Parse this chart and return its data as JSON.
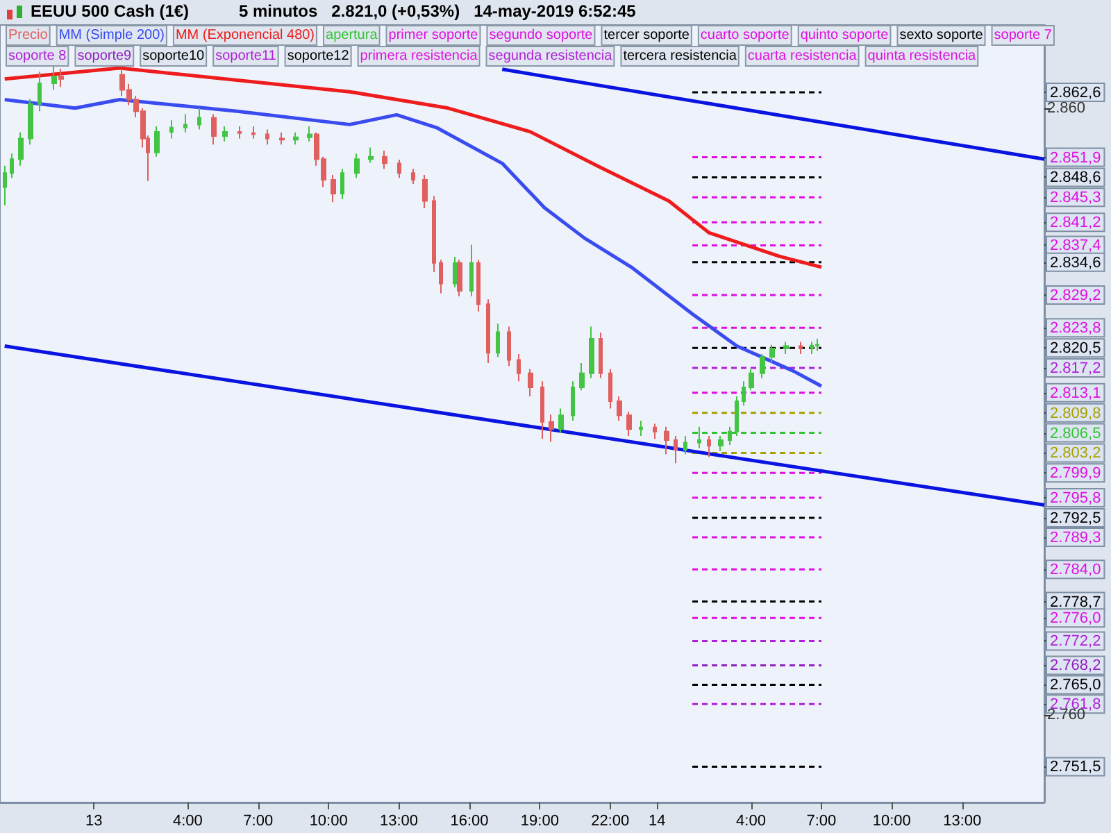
{
  "chart_data": {
    "type": "candlestick",
    "title": "EEUU 500 Cash (1€)",
    "subtitle": "5 minutos   2.821,0 (+0,53%)   14-may-2019 6:52:45",
    "legend": "top left",
    "grid": false,
    "line_style": "dashed",
    "xlim": [
      "2019-05-12T20:00",
      "2019-05-14T16:30"
    ],
    "xticks": [
      {
        "value": "2019-05-13T00:00",
        "label": "13"
      },
      {
        "value": "2019-05-13T04:00",
        "label": "4:00"
      },
      {
        "value": "2019-05-13T07:00",
        "label": "7:00"
      },
      {
        "value": "2019-05-13T10:00",
        "label": "10:00"
      },
      {
        "value": "2019-05-13T13:00",
        "label": "13:00"
      },
      {
        "value": "2019-05-13T16:00",
        "label": "16:00"
      },
      {
        "value": "2019-05-13T19:00",
        "label": "19:00"
      },
      {
        "value": "2019-05-13T22:00",
        "label": "22:00"
      },
      {
        "value": "2019-05-14T00:00",
        "label": "14"
      },
      {
        "value": "2019-05-14T04:00",
        "label": "4:00"
      },
      {
        "value": "2019-05-14T07:00",
        "label": "7:00"
      },
      {
        "value": "2019-05-14T10:00",
        "label": "10:00"
      },
      {
        "value": "2019-05-14T13:00",
        "label": "13:00"
      }
    ],
    "ylim": [
      2745.6,
      2873.7
    ],
    "yticks": [
      {
        "value": 2751.5,
        "label": "2.751,5"
      },
      {
        "value": 2862.6,
        "label": "2.862,6"
      },
      {
        "value": 2860,
        "label": "2.860"
      },
      {
        "value": 2851.9,
        "label": "2.851,9"
      },
      {
        "value": 2848.6,
        "label": "2.848,6"
      },
      {
        "value": 2845.3,
        "label": "2.845,3"
      },
      {
        "value": 2841.2,
        "label": "2.841,2"
      },
      {
        "value": 2837.4,
        "label": "2.837,4"
      },
      {
        "value": 2834.6,
        "label": "2.834,6"
      },
      {
        "value": 2829.2,
        "label": "2.829,2"
      },
      {
        "value": 2820.5,
        "label": "2.820,5"
      },
      {
        "value": 2817.2,
        "label": "2.817,2"
      },
      {
        "value": 2813.1,
        "label": "2.813,1"
      },
      {
        "value": 2809.8,
        "label": "2.809,8"
      },
      {
        "value": 2806.5,
        "label": "2.806,5"
      },
      {
        "value": 2803.2,
        "label": "2.803,2"
      },
      {
        "value": 2799.9,
        "label": "2.799,9"
      },
      {
        "value": 2795.8,
        "label": "2.795,8"
      },
      {
        "value": 2792.5,
        "label": "2.792,5"
      },
      {
        "value": 2789.3,
        "label": "2.789,3"
      },
      {
        "value": 2784.0,
        "label": "2.784,0"
      },
      {
        "value": 2778.7,
        "label": "2.778,7"
      },
      {
        "value": 2776.0,
        "label": "2.776,0"
      },
      {
        "value": 2772.2,
        "label": "2.772,2"
      },
      {
        "value": 2768.2,
        "label": "2.768,2"
      },
      {
        "value": 2765.0,
        "label": "2.765,0"
      },
      {
        "value": 2761.8,
        "label": "2.761,8"
      },
      {
        "value": 2760,
        "label": "2.760"
      },
      {
        "value": 2823.8,
        "label": "2.823,8"
      }
    ],
    "series": [
      {
        "name": "Precio",
        "color": "#e06060",
        "colors": [
          "#44c444",
          "#44c444",
          "#44c444",
          "#44c444",
          "#44c444",
          "#44c444",
          "#e06060",
          "#e06060",
          "#e06060",
          "#e06060",
          "#e06060",
          "#e06060",
          "#44c444",
          "#44c444",
          "#44c444",
          "#44c444",
          "#e06060",
          "#44c444",
          "#e06060",
          "#e06060",
          "#e06060",
          "#e06060",
          "#44c444",
          "#44c444",
          "#e06060",
          "#e06060",
          "#e06060",
          "#44c444",
          "#44c444",
          "#44c444",
          "#e06060",
          "#e06060",
          "#e06060",
          "#e06060",
          "#e06060",
          "#e06060",
          "#44c444",
          "#e06060",
          "#44c444",
          "#e06060",
          "#e06060",
          "#44c444",
          "#e06060",
          "#e06060",
          "#e06060",
          "#e06060",
          "#e06060",
          "#44c444",
          "#44c444",
          "#44c444",
          "#44c444",
          "#e06060",
          "#e06060",
          "#e06060",
          "#e06060",
          "#44c444",
          "#e06060",
          "#e06060",
          "#e06060",
          "#44c444",
          "#44c444",
          "#e06060",
          "#44c444",
          "#44c444",
          "#44c444",
          "#44c444",
          "#44c444",
          "#44c444",
          "#44c444",
          "#44c444",
          "#e06060",
          "#44c444",
          "#44c444"
        ],
        "x": [
          "2019-05-12T20:12",
          "2019-05-12T20:30",
          "2019-05-12T20:54",
          "2019-05-12T21:18",
          "2019-05-12T21:42",
          "2019-05-12T22:18",
          "2019-05-12T22:36",
          "2019-05-13T01:12",
          "2019-05-13T01:30",
          "2019-05-13T01:48",
          "2019-05-13T02:06",
          "2019-05-13T02:18",
          "2019-05-13T02:42",
          "2019-05-13T03:18",
          "2019-05-13T03:54",
          "2019-05-13T04:30",
          "2019-05-13T05:06",
          "2019-05-13T05:36",
          "2019-05-13T06:12",
          "2019-05-13T06:48",
          "2019-05-13T07:24",
          "2019-05-13T08:00",
          "2019-05-13T08:36",
          "2019-05-13T09:12",
          "2019-05-13T09:30",
          "2019-05-13T09:48",
          "2019-05-13T10:12",
          "2019-05-13T10:36",
          "2019-05-13T11:12",
          "2019-05-13T11:48",
          "2019-05-13T12:24",
          "2019-05-13T13:00",
          "2019-05-13T13:36",
          "2019-05-13T14:06",
          "2019-05-13T14:30",
          "2019-05-13T14:48",
          "2019-05-13T15:24",
          "2019-05-13T15:36",
          "2019-05-13T16:06",
          "2019-05-13T16:24",
          "2019-05-13T16:48",
          "2019-05-13T17:12",
          "2019-05-13T17:42",
          "2019-05-13T18:06",
          "2019-05-13T18:36",
          "2019-05-13T19:06",
          "2019-05-13T19:30",
          "2019-05-13T19:54",
          "2019-05-13T20:24",
          "2019-05-13T20:48",
          "2019-05-13T21:12",
          "2019-05-13T21:36",
          "2019-05-13T22:00",
          "2019-05-13T22:24",
          "2019-05-13T22:48",
          "2019-05-13T23:18",
          "2019-05-13T23:54",
          "2019-05-14T00:24",
          "2019-05-14T00:48",
          "2019-05-14T01:12",
          "2019-05-14T01:48",
          "2019-05-14T02:12",
          "2019-05-14T02:42",
          "2019-05-14T03:06",
          "2019-05-14T03:24",
          "2019-05-14T03:42",
          "2019-05-14T04:00",
          "2019-05-14T04:30",
          "2019-05-14T04:54",
          "2019-05-14T05:30",
          "2019-05-14T06:06",
          "2019-05-14T06:36",
          "2019-05-14T06:50"
        ],
        "ohlc": [
          [
            2847.0,
            2850.5,
            2844.0,
            2849.3
          ],
          [
            2849.3,
            2852.5,
            2848.5,
            2851.6
          ],
          [
            2851.6,
            2856.0,
            2850.5,
            2855.0
          ],
          [
            2855.0,
            2861.5,
            2854.0,
            2860.7
          ],
          [
            2860.7,
            2866.0,
            2859.5,
            2864.1
          ],
          [
            2864.1,
            2867.0,
            2863.0,
            2865.2
          ],
          [
            2865.2,
            2866.5,
            2863.5,
            2864.8
          ],
          [
            2865.5,
            2866.5,
            2862.0,
            2863.0
          ],
          [
            2863.0,
            2864.0,
            2860.5,
            2861.4
          ],
          [
            2861.4,
            2862.0,
            2858.5,
            2859.5
          ],
          [
            2859.5,
            2860.0,
            2853.5,
            2855.0
          ],
          [
            2855.0,
            2855.5,
            2848.0,
            2852.7
          ],
          [
            2852.7,
            2857.0,
            2852.0,
            2856.1
          ],
          [
            2856.1,
            2858.0,
            2855.0,
            2856.8
          ],
          [
            2856.8,
            2859.0,
            2856.0,
            2857.3
          ],
          [
            2857.3,
            2860.0,
            2856.5,
            2858.4
          ],
          [
            2858.4,
            2859.0,
            2854.0,
            2855.4
          ],
          [
            2855.4,
            2857.0,
            2854.5,
            2856.1
          ],
          [
            2856.1,
            2857.0,
            2855.0,
            2855.9
          ],
          [
            2855.9,
            2857.0,
            2855.0,
            2855.7
          ],
          [
            2855.7,
            2856.5,
            2854.0,
            2855.0
          ],
          [
            2855.0,
            2856.0,
            2854.0,
            2854.8
          ],
          [
            2854.8,
            2856.0,
            2854.0,
            2855.2
          ],
          [
            2855.2,
            2857.0,
            2854.5,
            2855.7
          ],
          [
            2855.7,
            2856.0,
            2850.5,
            2851.6
          ],
          [
            2851.6,
            2852.0,
            2847.0,
            2848.2
          ],
          [
            2848.2,
            2849.0,
            2844.5,
            2845.9
          ],
          [
            2845.9,
            2850.0,
            2845.0,
            2849.3
          ],
          [
            2849.3,
            2852.5,
            2848.5,
            2851.6
          ],
          [
            2851.6,
            2853.5,
            2851.0,
            2852.0
          ],
          [
            2852.0,
            2853.0,
            2850.0,
            2850.9
          ],
          [
            2850.9,
            2851.5,
            2848.5,
            2849.3
          ],
          [
            2849.3,
            2850.0,
            2847.5,
            2848.2
          ],
          [
            2848.2,
            2849.0,
            2843.5,
            2844.7
          ],
          [
            2844.7,
            2845.5,
            2833.0,
            2834.5
          ],
          [
            2834.5,
            2835.0,
            2829.5,
            2831.1
          ],
          [
            2831.1,
            2835.5,
            2830.5,
            2834.5
          ],
          [
            2834.5,
            2835.0,
            2829.0,
            2829.9
          ],
          [
            2829.9,
            2837.5,
            2829.0,
            2834.5
          ],
          [
            2834.5,
            2835.0,
            2826.5,
            2827.7
          ],
          [
            2827.7,
            2828.5,
            2818.0,
            2819.7
          ],
          [
            2819.7,
            2824.5,
            2819.0,
            2823.1
          ],
          [
            2823.1,
            2824.0,
            2817.5,
            2818.5
          ],
          [
            2818.5,
            2819.5,
            2815.0,
            2816.3
          ],
          [
            2816.3,
            2817.0,
            2812.5,
            2814.0
          ],
          [
            2814.0,
            2815.0,
            2805.5,
            2808.3
          ],
          [
            2808.3,
            2809.5,
            2805.0,
            2807.1
          ],
          [
            2807.1,
            2810.5,
            2806.5,
            2809.4
          ],
          [
            2809.4,
            2815.0,
            2808.5,
            2814.0
          ],
          [
            2814.0,
            2818.0,
            2813.5,
            2816.3
          ],
          [
            2816.3,
            2824.0,
            2815.5,
            2822.0
          ],
          [
            2822.0,
            2823.0,
            2815.5,
            2816.3
          ],
          [
            2816.3,
            2817.0,
            2810.5,
            2811.7
          ],
          [
            2811.7,
            2812.5,
            2808.5,
            2809.4
          ],
          [
            2809.4,
            2810.0,
            2806.0,
            2807.1
          ],
          [
            2807.1,
            2808.5,
            2806.0,
            2807.4
          ],
          [
            2807.4,
            2808.0,
            2805.5,
            2806.7
          ],
          [
            2806.7,
            2807.5,
            2803.0,
            2805.3
          ],
          [
            2805.3,
            2806.0,
            2801.5,
            2803.7
          ],
          [
            2803.7,
            2806.0,
            2803.0,
            2804.9
          ],
          [
            2804.9,
            2807.5,
            2804.0,
            2805.3
          ],
          [
            2805.3,
            2806.0,
            2802.5,
            2804.4
          ],
          [
            2804.4,
            2806.0,
            2803.5,
            2805.3
          ],
          [
            2805.3,
            2807.5,
            2804.5,
            2806.7
          ],
          [
            2806.7,
            2812.5,
            2806.0,
            2811.7
          ],
          [
            2811.7,
            2815.0,
            2811.0,
            2814.0
          ],
          [
            2814.0,
            2817.0,
            2813.5,
            2816.3
          ],
          [
            2816.3,
            2819.5,
            2815.5,
            2819.0
          ],
          [
            2819.0,
            2821.0,
            2818.0,
            2820.4
          ],
          [
            2820.4,
            2821.5,
            2819.5,
            2820.8
          ],
          [
            2820.8,
            2821.5,
            2819.5,
            2820.5
          ],
          [
            2820.5,
            2821.5,
            2819.5,
            2820.9
          ],
          [
            2820.9,
            2822.0,
            2820.0,
            2821.0
          ]
        ]
      },
      {
        "type": "line",
        "name": "MM (Simple 200)",
        "color": "#3a4cf0",
        "line_style": "solid",
        "x": [
          "2019-05-12T20:12",
          "2019-05-12T23:12",
          "2019-05-13T01:06",
          "2019-05-13T06:06",
          "2019-05-13T10:54",
          "2019-05-13T12:54",
          "2019-05-13T14:36",
          "2019-05-13T17:24",
          "2019-05-13T19:12",
          "2019-05-13T20:54",
          "2019-05-13T22:54",
          "2019-05-14T01:30",
          "2019-05-14T03:24",
          "2019-05-14T05:48",
          "2019-05-14T07:00"
        ],
        "values": [
          2861.4,
          2860.0,
          2861.4,
          2859.5,
          2857.3,
          2858.9,
          2856.8,
          2850.9,
          2843.6,
          2838.6,
          2833.8,
          2826.1,
          2820.8,
          2816.7,
          2814.2
        ]
      },
      {
        "type": "line",
        "name": "MM (Exponencial 480)",
        "color": "#ee1c1c",
        "line_style": "solid",
        "x": [
          "2019-05-12T20:12",
          "2019-05-13T01:06",
          "2019-05-13T05:06",
          "2019-05-13T10:54",
          "2019-05-13T15:06",
          "2019-05-13T18:36",
          "2019-05-13T21:30",
          "2019-05-14T00:30",
          "2019-05-14T02:12",
          "2019-05-14T05:12",
          "2019-05-14T07:00"
        ],
        "values": [
          2864.8,
          2866.6,
          2865.0,
          2862.7,
          2860.0,
          2856.1,
          2850.4,
          2844.7,
          2839.5,
          2835.6,
          2833.8
        ]
      },
      {
        "type": "line",
        "name": "apertura",
        "color": "#33c433",
        "x": [
          "2019-05-14T01:30",
          "2019-05-14T07:00"
        ],
        "values": [
          2806.5,
          2806.5
        ]
      },
      {
        "type": "line",
        "name": "primer soporte",
        "color": "#e010e0",
        "x": [
          "2019-05-14T01:30",
          "2019-05-14T07:00"
        ],
        "values": [
          2799.9,
          2799.9
        ]
      },
      {
        "type": "line",
        "name": "segundo soporte",
        "color": "#e010e0",
        "x": [
          "2019-05-14T01:30",
          "2019-05-14T07:00"
        ],
        "values": [
          2795.8,
          2795.8
        ]
      },
      {
        "type": "line",
        "name": "tercer soporte",
        "color": "#000000",
        "x": [
          "2019-05-14T01:30",
          "2019-05-14T07:00"
        ],
        "values": [
          2792.5,
          2792.5
        ]
      },
      {
        "type": "line",
        "name": "cuarto soporte",
        "color": "#e010e0",
        "x": [
          "2019-05-14T01:30",
          "2019-05-14T07:00"
        ],
        "values": [
          2789.3,
          2789.3
        ]
      },
      {
        "type": "line",
        "name": "quinto soporte",
        "color": "#e010e0",
        "x": [
          "2019-05-14T01:30",
          "2019-05-14T07:00"
        ],
        "values": [
          2784.0,
          2784.0
        ]
      },
      {
        "type": "line",
        "name": "sexto soporte",
        "color": "#000000",
        "x": [
          "2019-05-14T01:30",
          "2019-05-14T07:00"
        ],
        "values": [
          2778.7,
          2778.7
        ]
      },
      {
        "type": "line",
        "name": "soporte 7",
        "color": "#e010e0",
        "x": [
          "2019-05-14T01:30",
          "2019-05-14T07:00"
        ],
        "values": [
          2776.0,
          2776.0
        ]
      },
      {
        "type": "line",
        "name": "soporte 8",
        "color": "#b020d8",
        "x": [
          "2019-05-14T01:30",
          "2019-05-14T07:00"
        ],
        "values": [
          2772.2,
          2772.2
        ]
      },
      {
        "type": "line",
        "name": "soporte9",
        "color": "#9020c0",
        "x": [
          "2019-05-14T01:30",
          "2019-05-14T07:00"
        ],
        "values": [
          2768.2,
          2768.2
        ]
      },
      {
        "type": "line",
        "name": "soporte10",
        "color": "#000000",
        "x": [
          "2019-05-14T01:30",
          "2019-05-14T07:00"
        ],
        "values": [
          2765.0,
          2765.0
        ]
      },
      {
        "type": "line",
        "name": "soporte11",
        "color": "#b020d8",
        "x": [
          "2019-05-14T01:30",
          "2019-05-14T07:00"
        ],
        "values": [
          2761.8,
          2761.8
        ]
      },
      {
        "type": "line",
        "name": "soporte12",
        "color": "#000000",
        "x": [
          "2019-05-14T01:30",
          "2019-05-14T07:00"
        ],
        "values": [
          2751.5,
          2751.5
        ]
      },
      {
        "type": "line",
        "name": "primera resistencia",
        "color": "#e010e0",
        "x": [
          "2019-05-14T01:30",
          "2019-05-14T07:00"
        ],
        "values": [
          2813.1,
          2813.1
        ]
      },
      {
        "type": "line",
        "name": "segunda resistencia",
        "color": "#b020d8",
        "x": [
          "2019-05-14T01:30",
          "2019-05-14T07:00"
        ],
        "values": [
          2817.2,
          2817.2
        ]
      },
      {
        "type": "line",
        "name": "tercera resistencia",
        "color": "#000000",
        "x": [
          "2019-05-14T01:30",
          "2019-05-14T07:00"
        ],
        "values": [
          2820.5,
          2820.5
        ]
      },
      {
        "type": "line",
        "name": "cuarta resistencia",
        "color": "#e010e0",
        "x": [
          "2019-05-14T01:30",
          "2019-05-14T07:00"
        ],
        "values": [
          2823.8,
          2823.8
        ]
      },
      {
        "type": "line",
        "name": "quinta resistencia",
        "color": "#e010e0",
        "x": [
          "2019-05-14T01:30",
          "2019-05-14T07:00"
        ],
        "values": [
          2829.2,
          2829.2
        ]
      },
      {
        "type": "line",
        "color": "#000000",
        "x": [
          "2019-05-14T01:30",
          "2019-05-14T07:00"
        ],
        "values": [
          2834.6,
          2834.6
        ]
      },
      {
        "type": "line",
        "color": "#e010e0",
        "x": [
          "2019-05-14T01:30",
          "2019-05-14T07:00"
        ],
        "values": [
          2837.4,
          2837.4
        ]
      },
      {
        "type": "line",
        "color": "#e010e0",
        "x": [
          "2019-05-14T01:30",
          "2019-05-14T07:00"
        ],
        "values": [
          2841.2,
          2841.2
        ]
      },
      {
        "type": "line",
        "color": "#e010e0",
        "x": [
          "2019-05-14T01:30",
          "2019-05-14T07:00"
        ],
        "values": [
          2845.3,
          2845.3
        ]
      },
      {
        "type": "line",
        "color": "#000000",
        "x": [
          "2019-05-14T01:30",
          "2019-05-14T07:00"
        ],
        "values": [
          2848.6,
          2848.6
        ]
      },
      {
        "type": "line",
        "color": "#e010e0",
        "x": [
          "2019-05-14T01:30",
          "2019-05-14T07:00"
        ],
        "values": [
          2851.9,
          2851.9
        ]
      },
      {
        "type": "line",
        "color": "#000000",
        "x": [
          "2019-05-14T01:30",
          "2019-05-14T07:00"
        ],
        "values": [
          2862.6,
          2862.6
        ]
      },
      {
        "type": "line",
        "color": "#a8a000",
        "x": [
          "2019-05-14T01:30",
          "2019-05-14T07:00"
        ],
        "values": [
          2809.8,
          2809.8
        ]
      },
      {
        "type": "line",
        "color": "#a8a000",
        "x": [
          "2019-05-14T01:30",
          "2019-05-14T07:00"
        ],
        "values": [
          2803.2,
          2803.2
        ]
      },
      {
        "type": "line",
        "color": "#0a14e0",
        "line_style": "solid",
        "x": [
          "2019-05-13T17:24",
          "2019-05-14T16:30"
        ],
        "values": [
          2866.4,
          2851.6
        ]
      },
      {
        "type": "line",
        "color": "#0a14e0",
        "line_style": "solid",
        "x": [
          "2019-05-12T20:12",
          "2019-05-14T16:30"
        ],
        "values": [
          2820.8,
          2794.6
        ]
      }
    ]
  }
}
